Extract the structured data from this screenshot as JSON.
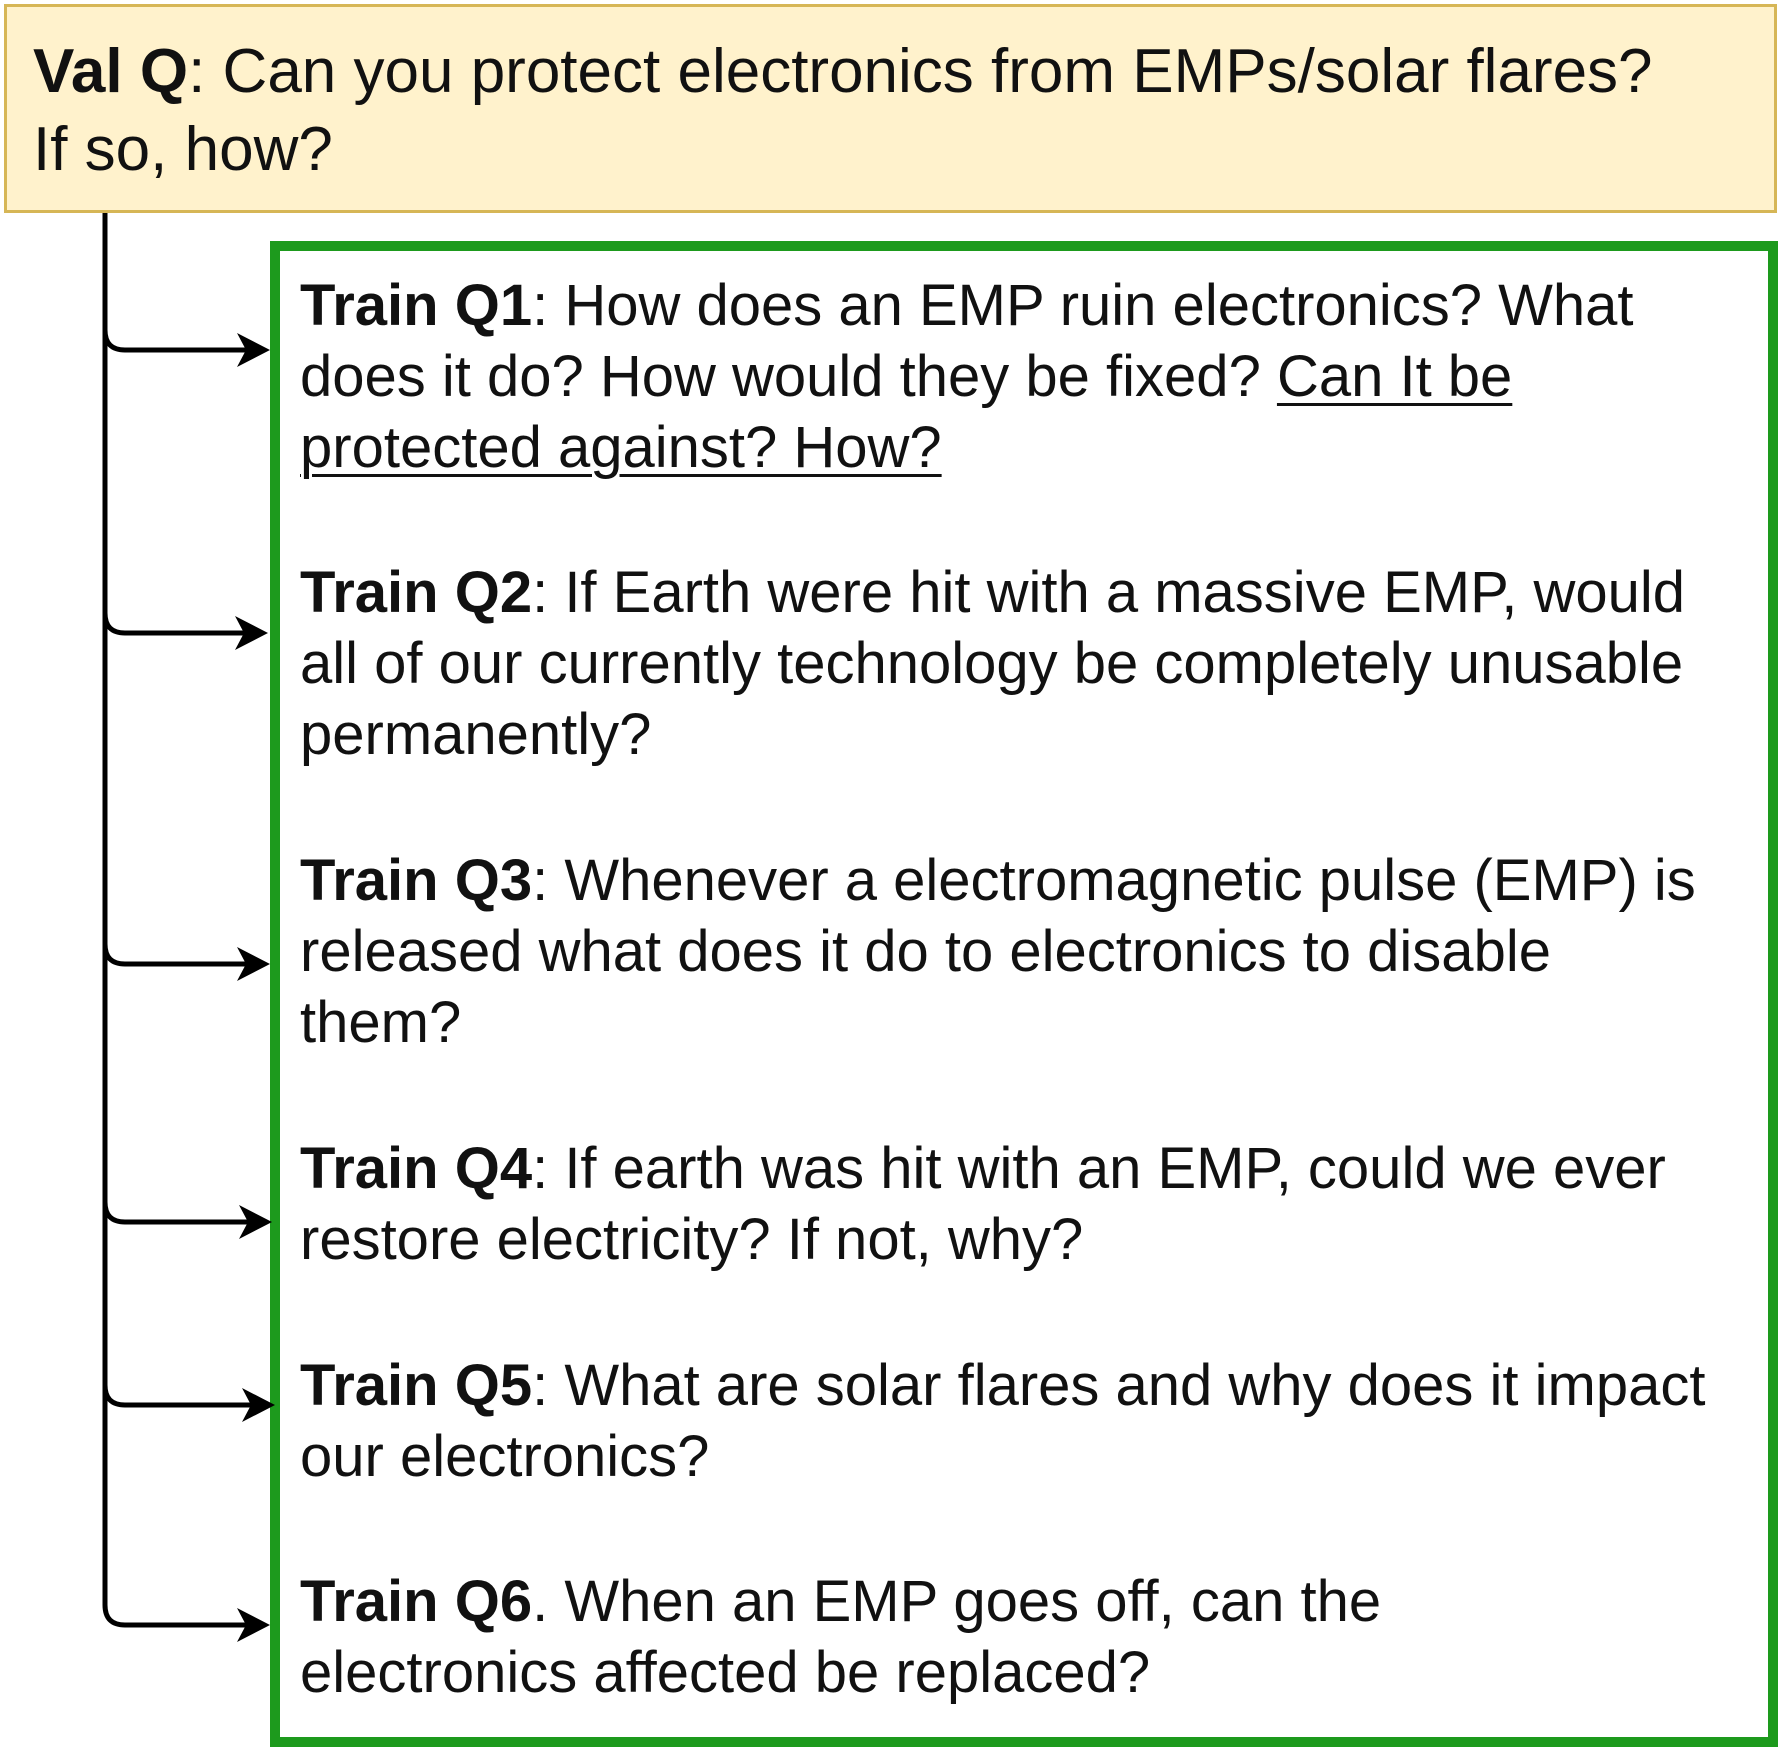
{
  "val_question": {
    "label": "Val Q",
    "line1": ": Can you protect electronics from EMPs/solar flares?",
    "line2": "If so, how?"
  },
  "train_questions": [
    {
      "label": "Train Q1",
      "lines": [
        ": How does an EMP ruin electronics? What",
        "does it do? How would they be fixed? ",
        ""
      ],
      "underlined": [
        "Can It be",
        "protected against? How?"
      ]
    },
    {
      "label": "Train Q2",
      "lines": [
        ": If Earth were hit with a massive EMP, would",
        "all of our currently technology be completely unusable",
        "permanently?"
      ]
    },
    {
      "label": "Train Q3",
      "lines": [
        ": Whenever a electromagnetic pulse (EMP) is",
        "released what does it do to electronics to disable",
        "them?"
      ]
    },
    {
      "label": "Train Q4",
      "lines": [
        ": If earth was hit with an EMP, could we ever",
        "restore electricity? If not, why?"
      ]
    },
    {
      "label": "Train Q5",
      "lines": [
        ": What are solar flares and why does it impact",
        "our electronics?"
      ]
    },
    {
      "label": "Train Q6",
      "lines": [
        ". When an EMP goes off, can the",
        "electronics affected be replaced?"
      ]
    }
  ],
  "colors": {
    "val_fill": "#fff2cc",
    "val_border": "#d6b656",
    "train_border": "#1d9a1d",
    "arrow": "#000000"
  }
}
